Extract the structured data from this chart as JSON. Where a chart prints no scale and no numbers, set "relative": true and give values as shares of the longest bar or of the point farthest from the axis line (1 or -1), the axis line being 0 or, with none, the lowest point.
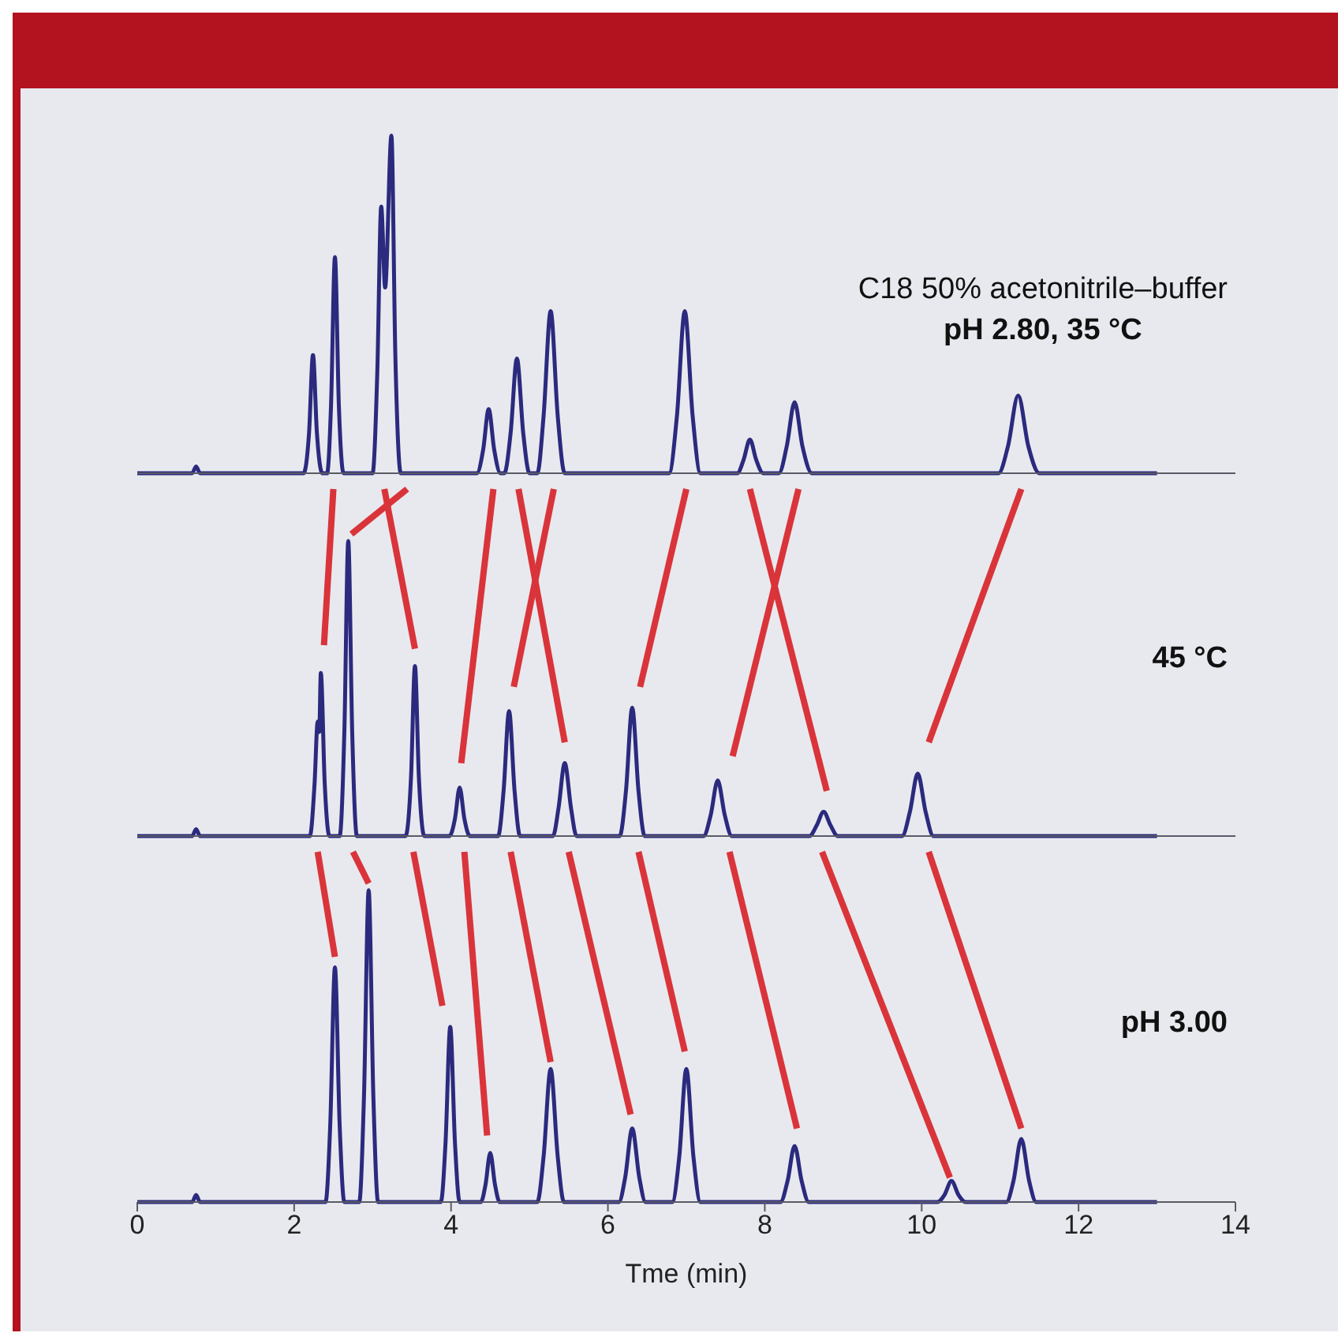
{
  "chart_data": [
    {
      "type": "line",
      "relative": true,
      "xlim": [
        0,
        14
      ],
      "xticks": [
        0,
        2,
        4,
        6,
        8,
        10,
        12,
        14
      ],
      "tick_labels": false,
      "line_style": "solid",
      "annotations": [
        "C18 50% acetonitrile–buffer",
        "pH 2.80, 35 °C"
      ],
      "series": [
        {
          "color": "#2b2a7e",
          "x": [
            0,
            0.7,
            0.75,
            0.8,
            2.12,
            2.19,
            2.24,
            2.29,
            2.36,
            2.42,
            2.47,
            2.52,
            2.57,
            2.63,
            3.0,
            3.06,
            3.11,
            3.16,
            3.24,
            3.29,
            3.36,
            4.33,
            4.41,
            4.48,
            4.55,
            4.63,
            4.68,
            4.76,
            4.84,
            4.92,
            5.0,
            5.1,
            5.18,
            5.27,
            5.36,
            5.45,
            6.78,
            6.88,
            6.98,
            7.08,
            7.18,
            7.65,
            7.73,
            7.81,
            7.89,
            7.98,
            8.18,
            8.28,
            8.38,
            8.48,
            8.6,
            10.98,
            11.1,
            11.23,
            11.36,
            11.5,
            13.0
          ],
          "values": [
            0,
            0,
            0.02,
            0,
            0,
            0.12,
            0.35,
            0.12,
            0,
            0,
            0.2,
            0.64,
            0.2,
            0,
            0,
            0.3,
            0.79,
            0.55,
            1,
            0.35,
            0,
            0,
            0.07,
            0.19,
            0.07,
            0,
            0,
            0.12,
            0.34,
            0.12,
            0,
            0,
            0.17,
            0.48,
            0.17,
            0,
            0,
            0.17,
            0.48,
            0.17,
            0,
            0,
            0.04,
            0.1,
            0.04,
            0,
            0,
            0.08,
            0.21,
            0.08,
            0,
            0,
            0.08,
            0.23,
            0.08,
            0,
            0
          ]
        }
      ]
    },
    {
      "type": "line",
      "relative": true,
      "xlim": [
        0,
        14
      ],
      "xticks": [
        0,
        2,
        4,
        6,
        8,
        10,
        12,
        14
      ],
      "tick_labels": false,
      "line_style": "solid",
      "annotations": [
        "45 °C"
      ],
      "series": [
        {
          "color": "#2b2a7e",
          "x": [
            0,
            0.7,
            0.75,
            0.8,
            2.2,
            2.26,
            2.3,
            2.32,
            2.34,
            2.39,
            2.45,
            2.58,
            2.64,
            2.69,
            2.74,
            2.8,
            3.42,
            3.49,
            3.54,
            3.59,
            3.66,
            3.98,
            4.05,
            4.11,
            4.17,
            4.24,
            4.6,
            4.67,
            4.74,
            4.81,
            4.88,
            5.3,
            5.37,
            5.45,
            5.53,
            5.6,
            6.15,
            6.23,
            6.31,
            6.39,
            6.47,
            7.22,
            7.31,
            7.4,
            7.49,
            7.58,
            8.57,
            8.66,
            8.75,
            8.84,
            8.93,
            9.75,
            9.85,
            9.95,
            10.05,
            10.15,
            13.0
          ],
          "values": [
            0,
            0,
            0.02,
            0,
            0,
            0.15,
            0.33,
            0.3,
            0.47,
            0.15,
            0,
            0,
            0.3,
            0.85,
            0.3,
            0,
            0,
            0.17,
            0.49,
            0.17,
            0,
            0,
            0.05,
            0.14,
            0.05,
            0,
            0,
            0.13,
            0.36,
            0.13,
            0,
            0,
            0.08,
            0.21,
            0.08,
            0,
            0,
            0.13,
            0.37,
            0.13,
            0,
            0,
            0.06,
            0.16,
            0.06,
            0,
            0,
            0.03,
            0.07,
            0.03,
            0,
            0,
            0.07,
            0.18,
            0.07,
            0,
            0
          ]
        },
        {
          "color": "#d9343a",
          "x": [
            2.5,
            2.38
          ],
          "values": [
            1,
            0.55
          ]
        },
        {
          "color": "#d9343a",
          "x": [
            2.73,
            3.44
          ],
          "values": [
            0.87,
            1
          ]
        },
        {
          "color": "#d9343a",
          "x": [
            3.15,
            3.54
          ],
          "values": [
            1,
            0.54
          ]
        },
        {
          "color": "#d9343a",
          "x": [
            4.54,
            4.13
          ],
          "values": [
            1,
            0.21
          ]
        },
        {
          "color": "#d9343a",
          "x": [
            4.86,
            5.45
          ],
          "values": [
            1,
            0.27
          ]
        },
        {
          "color": "#d9343a",
          "x": [
            5.31,
            4.8
          ],
          "values": [
            1,
            0.43
          ]
        },
        {
          "color": "#d9343a",
          "x": [
            7.0,
            6.41
          ],
          "values": [
            1,
            0.43
          ]
        },
        {
          "color": "#d9343a",
          "x": [
            7.81,
            8.79
          ],
          "values": [
            1,
            0.13
          ]
        },
        {
          "color": "#d9343a",
          "x": [
            8.43,
            7.59
          ],
          "values": [
            1,
            0.23
          ]
        },
        {
          "color": "#d9343a",
          "x": [
            11.27,
            10.09
          ],
          "values": [
            1,
            0.27
          ]
        }
      ]
    },
    {
      "type": "line",
      "relative": true,
      "xlim": [
        0,
        14
      ],
      "xticks": [
        0,
        2,
        4,
        6,
        8,
        10,
        12,
        14
      ],
      "tick_labels": "x",
      "xlabel": "Tme (min)",
      "line_style": "solid",
      "annotations": [
        "pH 3.00"
      ],
      "series": [
        {
          "color": "#2b2a7e",
          "x": [
            0,
            0.7,
            0.75,
            0.8,
            2.4,
            2.46,
            2.52,
            2.58,
            2.64,
            2.83,
            2.89,
            2.95,
            3.01,
            3.07,
            3.87,
            3.93,
            3.99,
            4.05,
            4.11,
            4.38,
            4.44,
            4.5,
            4.56,
            4.62,
            5.1,
            5.18,
            5.27,
            5.36,
            5.44,
            6.14,
            6.22,
            6.31,
            6.4,
            6.48,
            6.82,
            6.91,
            7.0,
            7.09,
            7.18,
            8.2,
            8.29,
            8.38,
            8.47,
            8.56,
            10.2,
            10.29,
            10.38,
            10.47,
            10.56,
            11.08,
            11.17,
            11.27,
            11.37,
            11.46,
            13.0
          ],
          "values": [
            0,
            0,
            0.02,
            0,
            0,
            0.22,
            0.67,
            0.22,
            0,
            0,
            0.3,
            0.89,
            0.3,
            0,
            0,
            0.17,
            0.5,
            0.17,
            0,
            0,
            0.05,
            0.14,
            0.05,
            0,
            0,
            0.13,
            0.38,
            0.13,
            0,
            0,
            0.07,
            0.21,
            0.07,
            0,
            0,
            0.13,
            0.38,
            0.13,
            0,
            0,
            0.06,
            0.16,
            0.06,
            0,
            0,
            0.02,
            0.06,
            0.02,
            0,
            0,
            0.06,
            0.18,
            0.06,
            0,
            0
          ]
        },
        {
          "color": "#d9343a",
          "x": [
            2.3,
            2.52
          ],
          "values": [
            1,
            0.7
          ]
        },
        {
          "color": "#d9343a",
          "x": [
            2.75,
            2.95
          ],
          "values": [
            1,
            0.91
          ]
        },
        {
          "color": "#d9343a",
          "x": [
            3.52,
            3.89
          ],
          "values": [
            1,
            0.56
          ]
        },
        {
          "color": "#d9343a",
          "x": [
            4.17,
            4.46
          ],
          "values": [
            1,
            0.19
          ]
        },
        {
          "color": "#d9343a",
          "x": [
            4.76,
            5.27
          ],
          "values": [
            1,
            0.4
          ]
        },
        {
          "color": "#d9343a",
          "x": [
            5.5,
            6.29
          ],
          "values": [
            1,
            0.25
          ]
        },
        {
          "color": "#d9343a",
          "x": [
            6.39,
            6.98
          ],
          "values": [
            1,
            0.43
          ]
        },
        {
          "color": "#d9343a",
          "x": [
            7.55,
            8.41
          ],
          "values": [
            1,
            0.21
          ]
        },
        {
          "color": "#d9343a",
          "x": [
            8.73,
            10.36
          ],
          "values": [
            1,
            0.07
          ]
        },
        {
          "color": "#d9343a",
          "x": [
            10.09,
            11.27
          ],
          "values": [
            1,
            0.21
          ]
        }
      ]
    }
  ]
}
